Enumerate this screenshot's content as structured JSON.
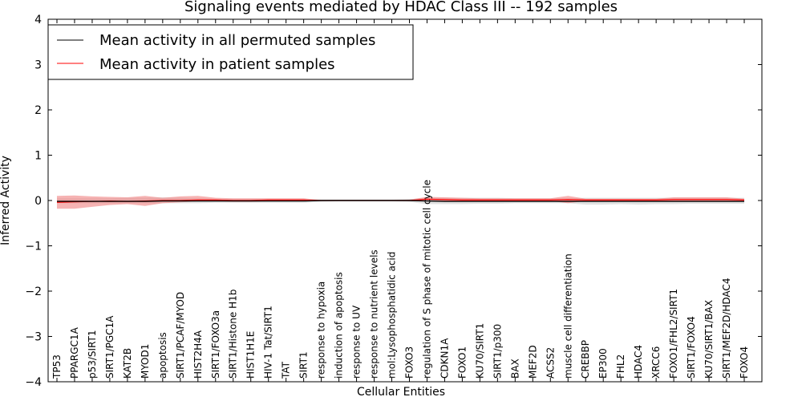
{
  "chart_data": {
    "type": "line",
    "title": "Signaling events mediated by HDAC Class III -- 192 samples",
    "xlabel": "Cellular Entities",
    "ylabel": "Inferred Activity",
    "ylim": [
      -4,
      4
    ],
    "yticks": [
      -4,
      -3,
      -2,
      -1,
      0,
      1,
      2,
      3,
      4
    ],
    "ytick_labels": [
      "−4",
      "−3",
      "−2",
      "−1",
      "0",
      "1",
      "2",
      "3",
      "4"
    ],
    "grid": false,
    "legend_position": "top-left",
    "colors": {
      "permuted": "#000000",
      "patient": "#ff0000",
      "patient_band": "#f08080",
      "permuted_band": "#c8c8c8"
    },
    "categories": [
      "TP53",
      "PPARGC1A",
      "p53/SIRT1",
      "SIRT1/PGC1A",
      "KAT2B",
      "MYOD1",
      "apoptosis",
      "SIRT1/PCAF/MYOD",
      "HIST2H4A",
      "SIRT1/FOXO3a",
      "SIRT1/Histone H1b",
      "HIST1H1E",
      "HIV-1 Tat/SIRT1",
      "TAT",
      "SIRT1",
      "response to hypoxia",
      "induction of apoptosis",
      "response to UV",
      "response to nutrient levels",
      "mol:Lysophosphatidic acid",
      "FOXO3",
      "regulation of S phase of mitotic cell cycle",
      "CDKN1A",
      "FOXO1",
      "KU70/SIRT1",
      "SIRT1/p300",
      "BAX",
      "MEF2D",
      "ACSS2",
      "muscle cell differentiation",
      "CREBBP",
      "EP300",
      "FHL2",
      "HDAC4",
      "XRCC6",
      "FOXO1/FHL2/SIRT1",
      "SIRT1/FOXO4",
      "KU70/SIRT1/BAX",
      "SIRT1/MEF2D/HDAC4",
      "FOXO4"
    ],
    "series": [
      {
        "name": "Mean activity in all permuted samples",
        "values": [
          -0.02,
          -0.02,
          -0.02,
          -0.02,
          -0.02,
          -0.02,
          -0.01,
          -0.01,
          -0.01,
          -0.01,
          -0.01,
          -0.01,
          -0.01,
          -0.01,
          -0.01,
          0,
          0,
          0,
          0,
          0,
          0,
          -0.01,
          -0.02,
          -0.02,
          -0.02,
          -0.02,
          -0.02,
          -0.02,
          -0.02,
          -0.02,
          -0.02,
          -0.02,
          -0.02,
          -0.02,
          -0.02,
          -0.02,
          -0.02,
          -0.02,
          -0.02,
          -0.02
        ],
        "lower": [
          -0.06,
          -0.06,
          -0.06,
          -0.06,
          -0.06,
          -0.06,
          -0.06,
          -0.06,
          -0.06,
          -0.05,
          -0.05,
          -0.05,
          -0.05,
          -0.05,
          -0.05,
          -0.03,
          -0.02,
          -0.02,
          -0.02,
          -0.02,
          -0.03,
          -0.08,
          -0.08,
          -0.08,
          -0.07,
          -0.07,
          -0.06,
          -0.06,
          -0.06,
          -0.06,
          -0.09,
          -0.09,
          -0.08,
          -0.09,
          -0.08,
          -0.08,
          -0.07,
          -0.07,
          -0.07,
          -0.07
        ],
        "upper": [
          0.05,
          0.05,
          0.05,
          0.05,
          0.06,
          0.06,
          0.07,
          0.06,
          0.05,
          0.04,
          0.04,
          0.04,
          0.04,
          0.04,
          0.04,
          0.02,
          0.02,
          0.02,
          0.02,
          0.02,
          0.03,
          0.06,
          0.06,
          0.06,
          0.06,
          0.06,
          0.05,
          0.05,
          0.05,
          0.05,
          0.06,
          0.06,
          0.06,
          0.06,
          0.06,
          0.06,
          0.06,
          0.06,
          0.06,
          0.06
        ]
      },
      {
        "name": "Mean activity in patient samples",
        "values": [
          -0.04,
          -0.03,
          -0.02,
          -0.01,
          -0.02,
          -0.01,
          0,
          0,
          0.01,
          0.01,
          0,
          0,
          0.01,
          0.01,
          0.01,
          0,
          0,
          0,
          0,
          0,
          0,
          0.03,
          0.02,
          0.01,
          0.01,
          0.01,
          0.01,
          0.01,
          0.01,
          0.02,
          0.01,
          0.01,
          0.01,
          0.01,
          0.01,
          0.02,
          0.02,
          0.02,
          0.02,
          0.01
        ],
        "lower": [
          -0.18,
          -0.18,
          -0.14,
          -0.1,
          -0.08,
          -0.12,
          -0.06,
          -0.04,
          -0.02,
          -0.02,
          -0.03,
          -0.03,
          -0.02,
          -0.02,
          -0.02,
          0,
          0,
          0,
          0,
          0,
          -0.01,
          -0.02,
          -0.02,
          -0.02,
          -0.01,
          -0.01,
          -0.01,
          -0.01,
          -0.01,
          -0.06,
          -0.01,
          -0.01,
          -0.01,
          -0.01,
          -0.01,
          -0.01,
          -0.01,
          -0.01,
          -0.01,
          -0.01
        ],
        "upper": [
          0.1,
          0.11,
          0.09,
          0.08,
          0.07,
          0.1,
          0.06,
          0.09,
          0.1,
          0.06,
          0.05,
          0.05,
          0.05,
          0.05,
          0.05,
          0.01,
          0.01,
          0.01,
          0.01,
          0.01,
          0.02,
          0.08,
          0.07,
          0.06,
          0.05,
          0.05,
          0.05,
          0.05,
          0.05,
          0.1,
          0.04,
          0.04,
          0.04,
          0.04,
          0.04,
          0.07,
          0.07,
          0.07,
          0.07,
          0.04
        ]
      }
    ]
  }
}
